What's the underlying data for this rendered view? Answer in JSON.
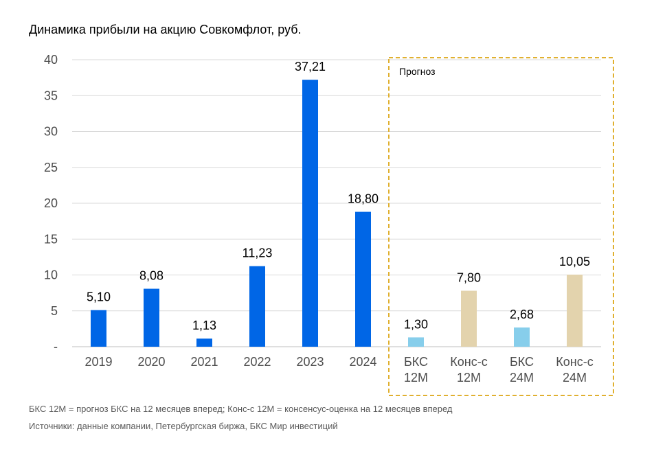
{
  "chart_data": {
    "type": "bar",
    "title": "Динамика прибыли на акцию Совкомфлот, руб.",
    "categories": [
      [
        "2019"
      ],
      [
        "2020"
      ],
      [
        "2021"
      ],
      [
        "2022"
      ],
      [
        "2023"
      ],
      [
        "2024"
      ],
      [
        "БКС",
        "12М"
      ],
      [
        "Конс-с",
        "12М"
      ],
      [
        "БКС",
        "24М"
      ],
      [
        "Конс-с",
        "24М"
      ]
    ],
    "values": [
      5.1,
      8.08,
      1.13,
      11.23,
      37.21,
      18.8,
      1.3,
      7.8,
      2.68,
      10.05
    ],
    "value_labels": [
      "5,10",
      "8,08",
      "1,13",
      "11,23",
      "37,21",
      "18,80",
      "1,30",
      "7,80",
      "2,68",
      "10,05"
    ],
    "bar_colors": [
      "#0066e6",
      "#0066e6",
      "#0066e6",
      "#0066e6",
      "#0066e6",
      "#0066e6",
      "#87ceeb",
      "#e3d3ad",
      "#87ceeb",
      "#e3d3ad"
    ],
    "yticks": [
      {
        "value": 0,
        "label": "-"
      },
      {
        "value": 5,
        "label": "5"
      },
      {
        "value": 10,
        "label": "10"
      },
      {
        "value": 15,
        "label": "15"
      },
      {
        "value": 20,
        "label": "20"
      },
      {
        "value": 25,
        "label": "25"
      },
      {
        "value": 30,
        "label": "30"
      },
      {
        "value": 35,
        "label": "35"
      },
      {
        "value": 40,
        "label": "40"
      }
    ],
    "ylim": [
      0,
      40
    ],
    "grid": true,
    "forecast_region": {
      "label": "Прогноз",
      "first_index": 6,
      "last_index": 9,
      "border_color": "#e0b030"
    }
  },
  "footnotes": {
    "legend_note": "БКС 12М = прогноз БКС на 12 месяцев вперед; Конс-с 12М = консенсус-оценка на 12 месяцев вперед",
    "sources": "Источники: данные компании, Петербургская биржа, БКС Мир инвестиций"
  }
}
